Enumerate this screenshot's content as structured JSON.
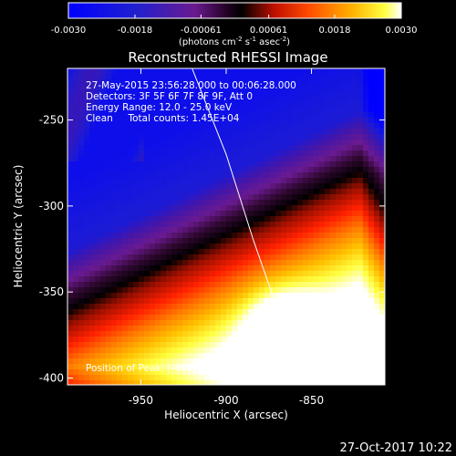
{
  "colorbar": {
    "tick_labels": [
      "-0.0030",
      "-0.0018",
      "-0.00061",
      "0.00061",
      "0.0018",
      "0.0030"
    ],
    "label_main": "(photons cm",
    "label_exp1": "-2",
    "label_mid1": " s",
    "label_exp2": "-1",
    "label_mid2": " asec",
    "label_exp3": "-2",
    "label_end": ")",
    "range": [
      -0.003,
      0.003
    ],
    "colormap": [
      "#0000ff",
      "#1a1ad8",
      "#4416a8",
      "#6a1a90",
      "#300830",
      "#000000",
      "#a01000",
      "#ff2000",
      "#ff7800",
      "#ffc000",
      "#ffff40",
      "#ffffff"
    ]
  },
  "overlay_text": [
    "27-May-2015 23:56:28.000 to 00:06:28.000",
    "Detectors: 3F 5F 6F 7F 8F 9F, Att 0",
    "Energy Range: 12.0 - 25.0 keV",
    "Clean     Total counts: 1.45E+04"
  ],
  "peak_text": "Position of Peak: [-866, -371]",
  "date_stamp": "27-Oct-2017 10:22",
  "chart_data": {
    "type": "heatmap",
    "title": "Reconstructed RHESSI Image",
    "xlabel": "Heliocentric X (arcsec)",
    "ylabel": "Heliocentric Y (arcsec)",
    "xlim": [
      -993,
      -807
    ],
    "ylim": [
      -404,
      -220
    ],
    "xticks": [
      -950,
      -900,
      -850
    ],
    "yticks": [
      -250,
      -300,
      -350,
      -400
    ],
    "xtick_labels": [
      "-950",
      "-900",
      "-850"
    ],
    "ytick_labels": [
      "-250",
      "-300",
      "-350",
      "-400"
    ],
    "peak": [
      -866,
      -371
    ],
    "limb": [
      [
        -920,
        -220
      ],
      [
        -900,
        -270
      ],
      [
        -884,
        -320
      ],
      [
        -866,
        -371
      ],
      [
        -853,
        -404
      ]
    ]
  }
}
